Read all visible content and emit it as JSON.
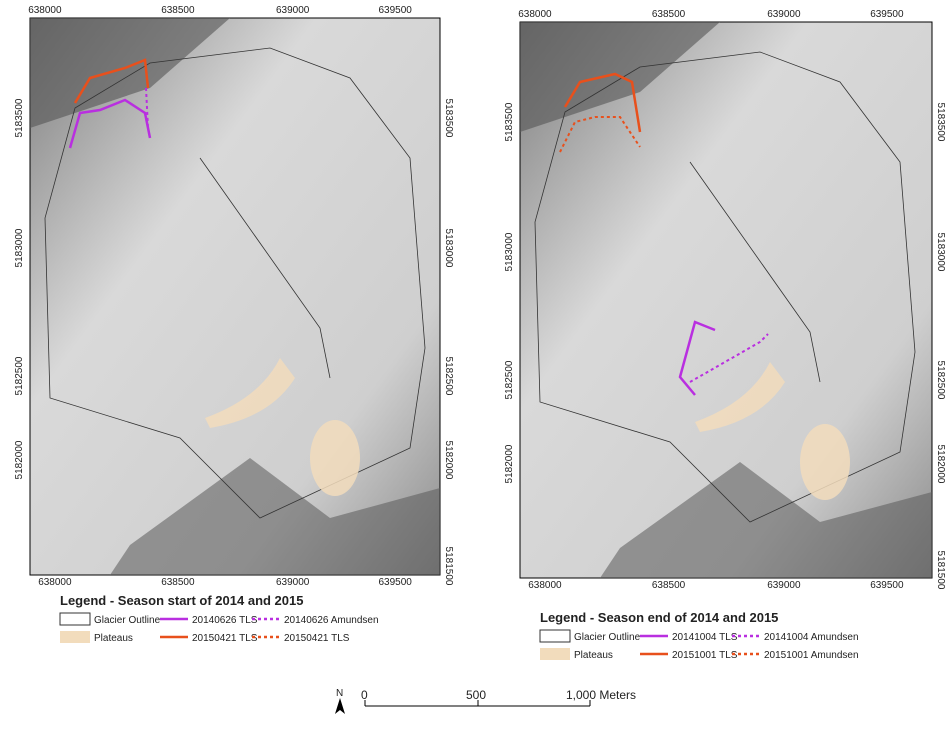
{
  "panels": [
    {
      "x_top": [
        "638000",
        "638500",
        "639000",
        "639500"
      ],
      "x_bottom": [
        "638000",
        "638500",
        "639000",
        "639500"
      ],
      "y_left": [
        "5183500",
        "5183000",
        "5182500",
        "5182000"
      ],
      "y_right": [
        "5183500",
        "5183000",
        "5182500",
        "5182000",
        "5181500"
      ],
      "legend": {
        "title": "Legend - Season start of 2014 and 2015",
        "items": [
          "Glacier Outline",
          "20140626 TLS",
          "20140626 Amundsen",
          "Plateaus",
          "20150421 TLS",
          "20150421 TLS"
        ]
      }
    },
    {
      "x_top": [
        "638000",
        "638500",
        "639000",
        "639500"
      ],
      "x_bottom": [
        "638000",
        "638500",
        "639000",
        "639500"
      ],
      "y_left": [
        "5183500",
        "5183000",
        "5182500",
        "5182000"
      ],
      "y_right": [
        "5183500",
        "5183000",
        "5182500",
        "5182000",
        "5181500"
      ],
      "legend": {
        "title": "Legend - Season end of 2014 and 2015",
        "items": [
          "Glacier Outline",
          "20141004 TLS",
          "20141004 Amundsen",
          "Plateaus",
          "20151001 TLS",
          "20151001 Amundsen"
        ]
      }
    }
  ],
  "scale_bar": {
    "labels": [
      "0",
      "500",
      "1,000 Meters"
    ]
  },
  "north": "N"
}
